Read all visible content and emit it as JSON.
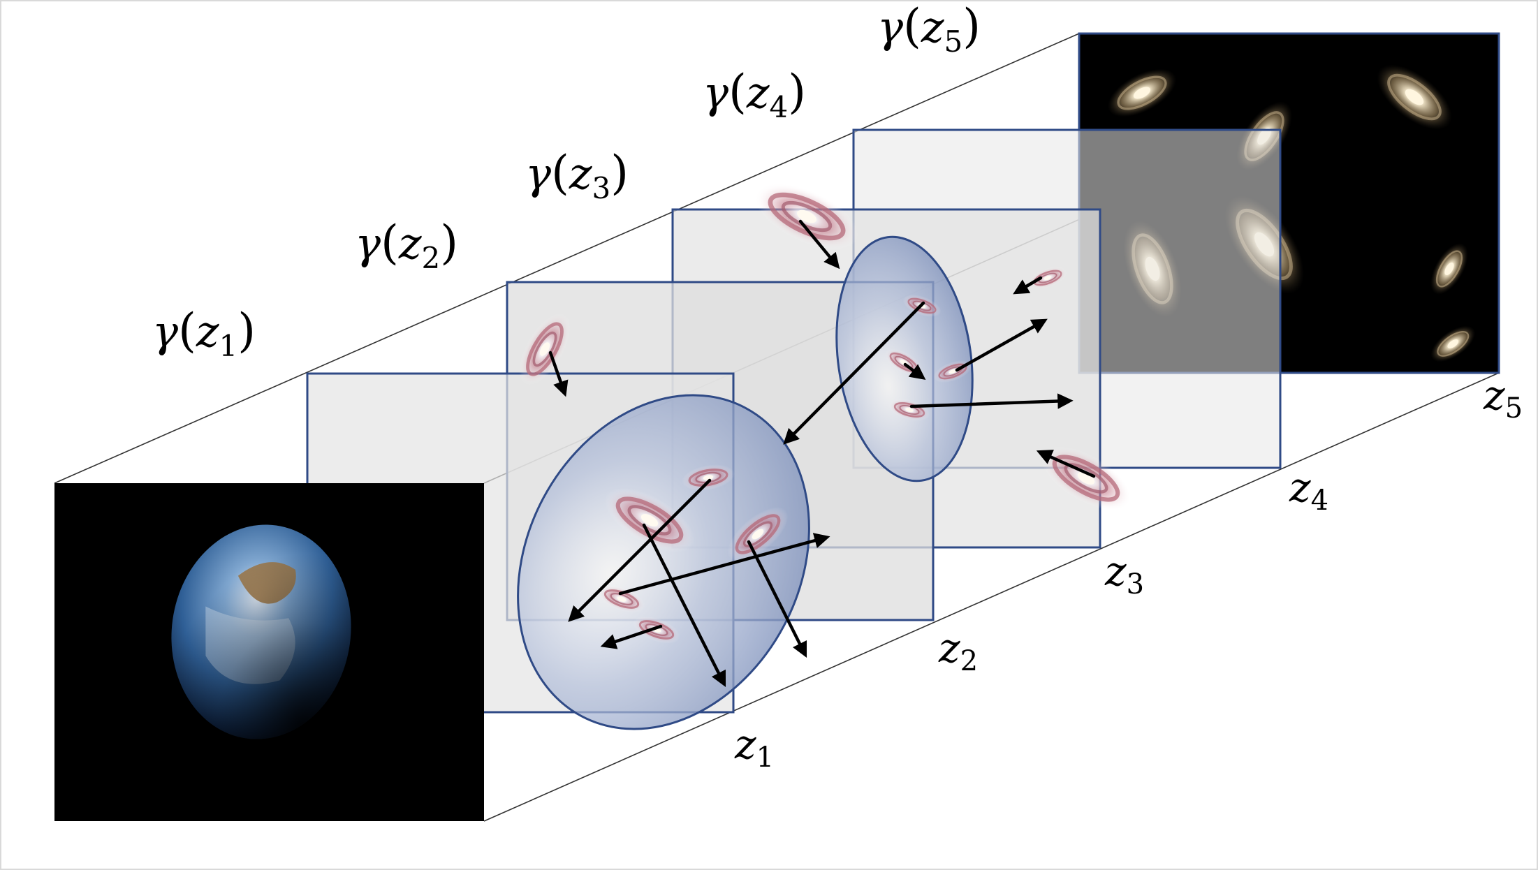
{
  "colors": {
    "background": "#ffffff",
    "plane_fill": "#e8e8e8",
    "plane_border": "#2f4a86",
    "ellipse_fill": "#8d9ec4",
    "arrow": "#000000",
    "space": "#000000",
    "galaxy_core": "#f1e3c6",
    "galaxy_arm": "#b56a7a"
  },
  "icons": {
    "observer": "earth-image",
    "far_field": "galaxy-field-image",
    "galaxy": "spiral-galaxy-glyph"
  },
  "planes": [
    {
      "id": "plane-1",
      "z_label": {
        "main": "z",
        "sub": "1"
      },
      "gamma_label": {
        "fn": "γ",
        "arg": "z",
        "sub": "1"
      }
    },
    {
      "id": "plane-2",
      "z_label": {
        "main": "z",
        "sub": "2"
      },
      "gamma_label": {
        "fn": "γ",
        "arg": "z",
        "sub": "2"
      }
    },
    {
      "id": "plane-3",
      "z_label": {
        "main": "z",
        "sub": "3"
      },
      "gamma_label": {
        "fn": "γ",
        "arg": "z",
        "sub": "3"
      }
    },
    {
      "id": "plane-4",
      "z_label": {
        "main": "z",
        "sub": "4"
      },
      "gamma_label": {
        "fn": "γ",
        "arg": "z",
        "sub": "4"
      }
    },
    {
      "id": "plane-5",
      "z_label": {
        "main": "z",
        "sub": "5"
      },
      "gamma_label": {
        "fn": "γ",
        "arg": "z",
        "sub": "5"
      }
    }
  ]
}
